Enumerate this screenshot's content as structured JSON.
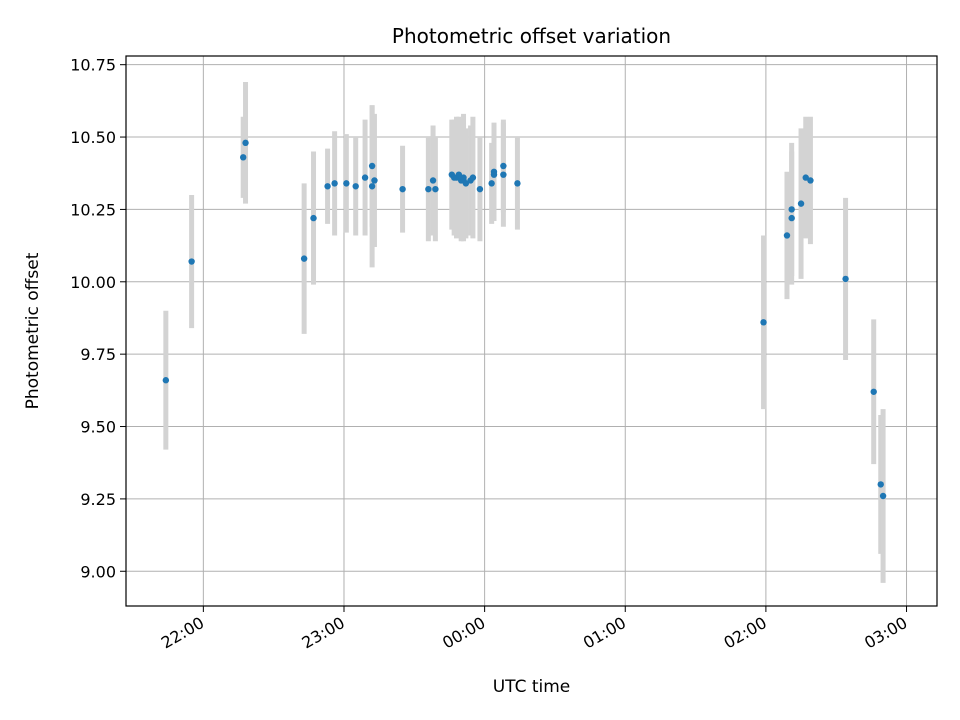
{
  "chart_data": {
    "type": "scatter",
    "title": "Photometric offset variation",
    "xlabel": "UTC time",
    "ylabel": "Photometric offset",
    "grid": true,
    "legend": "none",
    "x_axis": "time",
    "xlim": [
      "21:27",
      "03:13"
    ],
    "ylim": [
      8.88,
      10.78
    ],
    "x_ticks": [
      "22:00",
      "23:00",
      "00:00",
      "01:00",
      "02:00",
      "03:00"
    ],
    "y_ticks": [
      9.0,
      9.25,
      9.5,
      9.75,
      10.0,
      10.25,
      10.5,
      10.75
    ],
    "y_tick_labels": [
      "9.00",
      "9.25",
      "9.50",
      "9.75",
      "10.00",
      "10.25",
      "10.50",
      "10.75"
    ],
    "colors": {
      "points": "#1f77b4",
      "errorbars": "#d3d3d3",
      "grid": "#b0b0b0"
    },
    "series": [
      {
        "x": [
          "21:44",
          "21:55",
          "22:17",
          "22:18",
          "22:43",
          "22:47",
          "22:53",
          "22:56",
          "23:01",
          "23:05",
          "23:09",
          "23:12",
          "23:12",
          "23:13",
          "23:25",
          "23:36",
          "23:38",
          "23:39",
          "23:46",
          "23:47",
          "23:48",
          "23:49",
          "23:50",
          "23:51",
          "23:51",
          "23:52",
          "23:54",
          "23:55",
          "23:58",
          "00:03",
          "00:04",
          "00:04",
          "00:08",
          "00:08",
          "00:14",
          "01:59",
          "02:09",
          "02:11",
          "02:11",
          "02:15",
          "02:17",
          "02:19",
          "02:34",
          "02:46",
          "02:49",
          "02:50"
        ],
        "y": [
          9.66,
          10.07,
          10.43,
          10.48,
          10.08,
          10.22,
          10.33,
          10.34,
          10.34,
          10.33,
          10.36,
          10.33,
          10.4,
          10.35,
          10.32,
          10.32,
          10.35,
          10.32,
          10.37,
          10.36,
          10.36,
          10.37,
          10.35,
          10.35,
          10.36,
          10.34,
          10.35,
          10.36,
          10.32,
          10.34,
          10.38,
          10.37,
          10.4,
          10.37,
          10.34,
          9.86,
          10.16,
          10.22,
          10.25,
          10.27,
          10.36,
          10.35,
          10.01,
          9.62,
          9.3,
          9.26
        ],
        "error": [
          0.24,
          0.23,
          0.14,
          0.21,
          0.26,
          0.23,
          0.13,
          0.18,
          0.17,
          0.17,
          0.2,
          0.28,
          0.21,
          0.23,
          0.15,
          0.18,
          0.19,
          0.18,
          0.19,
          0.2,
          0.21,
          0.2,
          0.21,
          0.2,
          0.22,
          0.19,
          0.19,
          0.21,
          0.18,
          0.14,
          0.17,
          0.16,
          0.16,
          0.18,
          0.16,
          0.3,
          0.22,
          0.23,
          0.23,
          0.26,
          0.21,
          0.22,
          0.28,
          0.25,
          0.24,
          0.3
        ]
      }
    ]
  }
}
